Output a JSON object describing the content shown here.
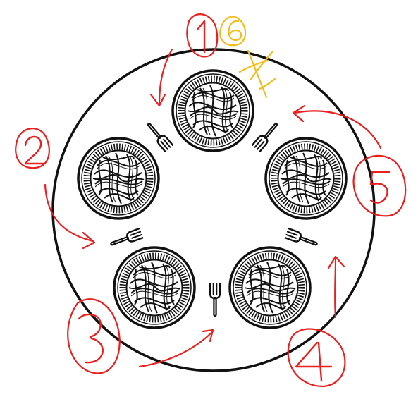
{
  "colors": {
    "table": "#111111",
    "plate": "#111111",
    "annotation": "#e8201f",
    "highlight": "#f3bd1c"
  },
  "plates": [
    {
      "id": "top"
    },
    {
      "id": "right"
    },
    {
      "id": "bottom-right"
    },
    {
      "id": "bottom-left"
    },
    {
      "id": "left"
    }
  ],
  "labels": {
    "one": "1",
    "two": "2",
    "three": "3",
    "four": "4",
    "five": "5",
    "six": "6"
  },
  "icons": {
    "fork": "fork-icon",
    "plate": "spaghetti-plate-icon",
    "cross": "x-mark-icon"
  }
}
